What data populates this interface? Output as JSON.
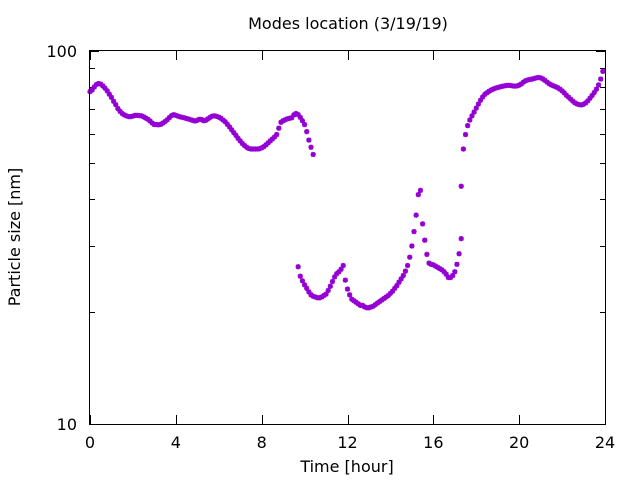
{
  "chart_data": {
    "type": "scatter",
    "title": "Modes location (3/19/19)",
    "xlabel": "Time [hour]",
    "ylabel": "Particle size [nm]",
    "xlim": [
      0,
      24
    ],
    "ylim": [
      10,
      100
    ],
    "yscale": "log",
    "grid": false,
    "legend": "none",
    "xticks": [
      0,
      4,
      8,
      12,
      16,
      20,
      24
    ],
    "xtick_labels": [
      "0",
      "4",
      "8",
      "12",
      "16",
      "20",
      "24"
    ],
    "yticks": [
      10,
      100
    ],
    "ytick_labels": [
      "10",
      "100"
    ],
    "colors": {
      "series": "#9400d3",
      "axes": "#000000",
      "background": "#ffffff"
    },
    "series": [
      {
        "points": [
          [
            0.0,
            77.8
          ],
          [
            0.1,
            78.6
          ],
          [
            0.2,
            80.1
          ],
          [
            0.3,
            81.3
          ],
          [
            0.4,
            81.8
          ],
          [
            0.5,
            81.5
          ],
          [
            0.6,
            80.6
          ],
          [
            0.7,
            79.5
          ],
          [
            0.8,
            78.2
          ],
          [
            0.9,
            76.6
          ],
          [
            1.0,
            75.1
          ],
          [
            1.1,
            73.3
          ],
          [
            1.2,
            71.8
          ],
          [
            1.3,
            70.1
          ],
          [
            1.4,
            68.9
          ],
          [
            1.5,
            68.0
          ],
          [
            1.6,
            67.4
          ],
          [
            1.7,
            67.0
          ],
          [
            1.8,
            66.7
          ],
          [
            1.9,
            66.7
          ],
          [
            2.0,
            66.9
          ],
          [
            2.1,
            67.2
          ],
          [
            2.2,
            67.2
          ],
          [
            2.3,
            67.1
          ],
          [
            2.4,
            67.0
          ],
          [
            2.5,
            66.6
          ],
          [
            2.6,
            66.1
          ],
          [
            2.7,
            65.6
          ],
          [
            2.8,
            64.9
          ],
          [
            2.9,
            64.1
          ],
          [
            3.0,
            63.5
          ],
          [
            3.1,
            63.5
          ],
          [
            3.2,
            63.4
          ],
          [
            3.3,
            63.6
          ],
          [
            3.4,
            64.1
          ],
          [
            3.5,
            64.7
          ],
          [
            3.6,
            65.4
          ],
          [
            3.7,
            66.3
          ],
          [
            3.8,
            67.1
          ],
          [
            3.9,
            67.5
          ],
          [
            4.0,
            67.2
          ],
          [
            4.1,
            66.9
          ],
          [
            4.2,
            66.6
          ],
          [
            4.3,
            66.4
          ],
          [
            4.4,
            66.2
          ],
          [
            4.5,
            65.9
          ],
          [
            4.6,
            65.7
          ],
          [
            4.7,
            65.4
          ],
          [
            4.8,
            65.1
          ],
          [
            4.9,
            64.9
          ],
          [
            5.0,
            65.2
          ],
          [
            5.1,
            65.6
          ],
          [
            5.2,
            65.5
          ],
          [
            5.3,
            65.0
          ],
          [
            5.4,
            65.2
          ],
          [
            5.5,
            65.8
          ],
          [
            5.6,
            66.4
          ],
          [
            5.7,
            66.9
          ],
          [
            5.8,
            67.0
          ],
          [
            5.9,
            66.8
          ],
          [
            6.0,
            66.5
          ],
          [
            6.1,
            66.0
          ],
          [
            6.2,
            65.3
          ],
          [
            6.3,
            64.6
          ],
          [
            6.4,
            63.6
          ],
          [
            6.5,
            62.6
          ],
          [
            6.6,
            61.5
          ],
          [
            6.7,
            60.4
          ],
          [
            6.8,
            59.4
          ],
          [
            6.9,
            58.3
          ],
          [
            7.0,
            57.4
          ],
          [
            7.1,
            56.5
          ],
          [
            7.2,
            55.8
          ],
          [
            7.3,
            55.2
          ],
          [
            7.4,
            54.8
          ],
          [
            7.5,
            54.6
          ],
          [
            7.6,
            54.6
          ],
          [
            7.7,
            54.6
          ],
          [
            7.8,
            54.6
          ],
          [
            7.9,
            54.7
          ],
          [
            8.0,
            55.0
          ],
          [
            8.1,
            55.4
          ],
          [
            8.2,
            56.0
          ],
          [
            8.3,
            56.7
          ],
          [
            8.4,
            57.4
          ],
          [
            8.5,
            58.1
          ],
          [
            8.6,
            58.8
          ],
          [
            8.7,
            59.7
          ],
          [
            8.8,
            62.1
          ],
          [
            8.9,
            64.4
          ],
          [
            9.0,
            65.0
          ],
          [
            9.1,
            65.4
          ],
          [
            9.2,
            65.8
          ],
          [
            9.3,
            66.0
          ],
          [
            9.4,
            66.2
          ],
          [
            9.5,
            67.4
          ],
          [
            9.6,
            68.0
          ],
          [
            9.7,
            67.5
          ],
          [
            9.8,
            66.4
          ],
          [
            9.9,
            65.0
          ],
          [
            10.0,
            63.5
          ],
          [
            10.1,
            60.8
          ],
          [
            10.2,
            57.7
          ],
          [
            10.3,
            55.2
          ],
          [
            10.4,
            52.8
          ],
          [
            9.7,
            26.4
          ],
          [
            9.8,
            24.9
          ],
          [
            9.9,
            24.2
          ],
          [
            10.0,
            23.6
          ],
          [
            10.1,
            23.1
          ],
          [
            10.2,
            22.6
          ],
          [
            10.3,
            22.2
          ],
          [
            10.4,
            22.0
          ],
          [
            10.5,
            21.9
          ],
          [
            10.6,
            21.8
          ],
          [
            10.7,
            21.8
          ],
          [
            10.8,
            21.9
          ],
          [
            10.9,
            22.1
          ],
          [
            11.0,
            22.3
          ],
          [
            11.1,
            22.8
          ],
          [
            11.2,
            23.4
          ],
          [
            11.3,
            24.1
          ],
          [
            11.4,
            24.8
          ],
          [
            11.5,
            25.3
          ],
          [
            11.6,
            25.6
          ],
          [
            11.7,
            26.0
          ],
          [
            11.8,
            26.6
          ],
          [
            11.9,
            24.3
          ],
          [
            12.0,
            23.0
          ],
          [
            12.1,
            22.2
          ],
          [
            12.2,
            21.6
          ],
          [
            12.3,
            21.4
          ],
          [
            12.4,
            21.2
          ],
          [
            12.5,
            21.0
          ],
          [
            12.6,
            20.8
          ],
          [
            12.7,
            20.8
          ],
          [
            12.8,
            20.6
          ],
          [
            12.9,
            20.5
          ],
          [
            13.0,
            20.5
          ],
          [
            13.1,
            20.6
          ],
          [
            13.2,
            20.7
          ],
          [
            13.3,
            20.9
          ],
          [
            13.4,
            21.1
          ],
          [
            13.5,
            21.3
          ],
          [
            13.6,
            21.5
          ],
          [
            13.7,
            21.7
          ],
          [
            13.8,
            21.9
          ],
          [
            13.9,
            22.1
          ],
          [
            14.0,
            22.4
          ],
          [
            14.1,
            22.7
          ],
          [
            14.2,
            23.1
          ],
          [
            14.3,
            23.5
          ],
          [
            14.4,
            24.0
          ],
          [
            14.5,
            24.5
          ],
          [
            14.6,
            25.0
          ],
          [
            14.7,
            25.7
          ],
          [
            14.8,
            26.6
          ],
          [
            14.9,
            28.0
          ],
          [
            15.0,
            30.0
          ],
          [
            15.1,
            32.8
          ],
          [
            15.2,
            36.3
          ],
          [
            15.3,
            41.2
          ],
          [
            15.4,
            42.3
          ],
          [
            15.5,
            34.4
          ],
          [
            15.6,
            31.1
          ],
          [
            15.7,
            28.5
          ],
          [
            15.8,
            27.0
          ],
          [
            15.9,
            26.8
          ],
          [
            16.0,
            26.7
          ],
          [
            16.1,
            26.5
          ],
          [
            16.2,
            26.3
          ],
          [
            16.3,
            26.1
          ],
          [
            16.4,
            25.9
          ],
          [
            16.5,
            25.6
          ],
          [
            16.6,
            25.2
          ],
          [
            16.7,
            24.7
          ],
          [
            16.8,
            24.7
          ],
          [
            16.9,
            25.0
          ],
          [
            17.0,
            25.6
          ],
          [
            17.1,
            26.8
          ],
          [
            17.2,
            28.6
          ],
          [
            17.3,
            31.4
          ],
          [
            17.3,
            43.4
          ],
          [
            17.4,
            54.6
          ],
          [
            17.5,
            59.7
          ],
          [
            17.6,
            63.1
          ],
          [
            17.7,
            65.3
          ],
          [
            17.8,
            67.0
          ],
          [
            17.9,
            68.6
          ],
          [
            18.0,
            70.3
          ],
          [
            18.1,
            72.1
          ],
          [
            18.2,
            73.8
          ],
          [
            18.3,
            75.3
          ],
          [
            18.4,
            76.5
          ],
          [
            18.5,
            77.3
          ],
          [
            18.6,
            78.0
          ],
          [
            18.7,
            78.6
          ],
          [
            18.8,
            79.1
          ],
          [
            18.9,
            79.5
          ],
          [
            19.0,
            79.8
          ],
          [
            19.1,
            80.1
          ],
          [
            19.2,
            80.4
          ],
          [
            19.3,
            80.6
          ],
          [
            19.4,
            80.8
          ],
          [
            19.5,
            80.9
          ],
          [
            19.6,
            80.8
          ],
          [
            19.7,
            80.6
          ],
          [
            19.8,
            80.5
          ],
          [
            19.9,
            80.6
          ],
          [
            20.0,
            81.0
          ],
          [
            20.1,
            81.6
          ],
          [
            20.2,
            82.5
          ],
          [
            20.3,
            83.2
          ],
          [
            20.4,
            83.6
          ],
          [
            20.5,
            83.9
          ],
          [
            20.6,
            84.1
          ],
          [
            20.7,
            84.4
          ],
          [
            20.8,
            84.7
          ],
          [
            20.9,
            84.9
          ],
          [
            21.0,
            84.7
          ],
          [
            21.1,
            84.2
          ],
          [
            21.2,
            83.4
          ],
          [
            21.3,
            82.5
          ],
          [
            21.4,
            81.7
          ],
          [
            21.5,
            81.1
          ],
          [
            21.6,
            80.6
          ],
          [
            21.7,
            80.2
          ],
          [
            21.8,
            79.7
          ],
          [
            21.9,
            79.0
          ],
          [
            22.0,
            78.2
          ],
          [
            22.1,
            77.2
          ],
          [
            22.2,
            76.1
          ],
          [
            22.3,
            75.2
          ],
          [
            22.4,
            74.3
          ],
          [
            22.5,
            73.4
          ],
          [
            22.6,
            72.6
          ],
          [
            22.7,
            72.1
          ],
          [
            22.8,
            71.8
          ],
          [
            22.9,
            71.7
          ],
          [
            23.0,
            72.0
          ],
          [
            23.1,
            72.6
          ],
          [
            23.2,
            73.5
          ],
          [
            23.3,
            74.7
          ],
          [
            23.4,
            76.0
          ],
          [
            23.5,
            77.4
          ],
          [
            23.6,
            79.0
          ],
          [
            23.7,
            81.1
          ],
          [
            23.8,
            84.1
          ],
          [
            23.9,
            88.2
          ]
        ]
      }
    ]
  }
}
